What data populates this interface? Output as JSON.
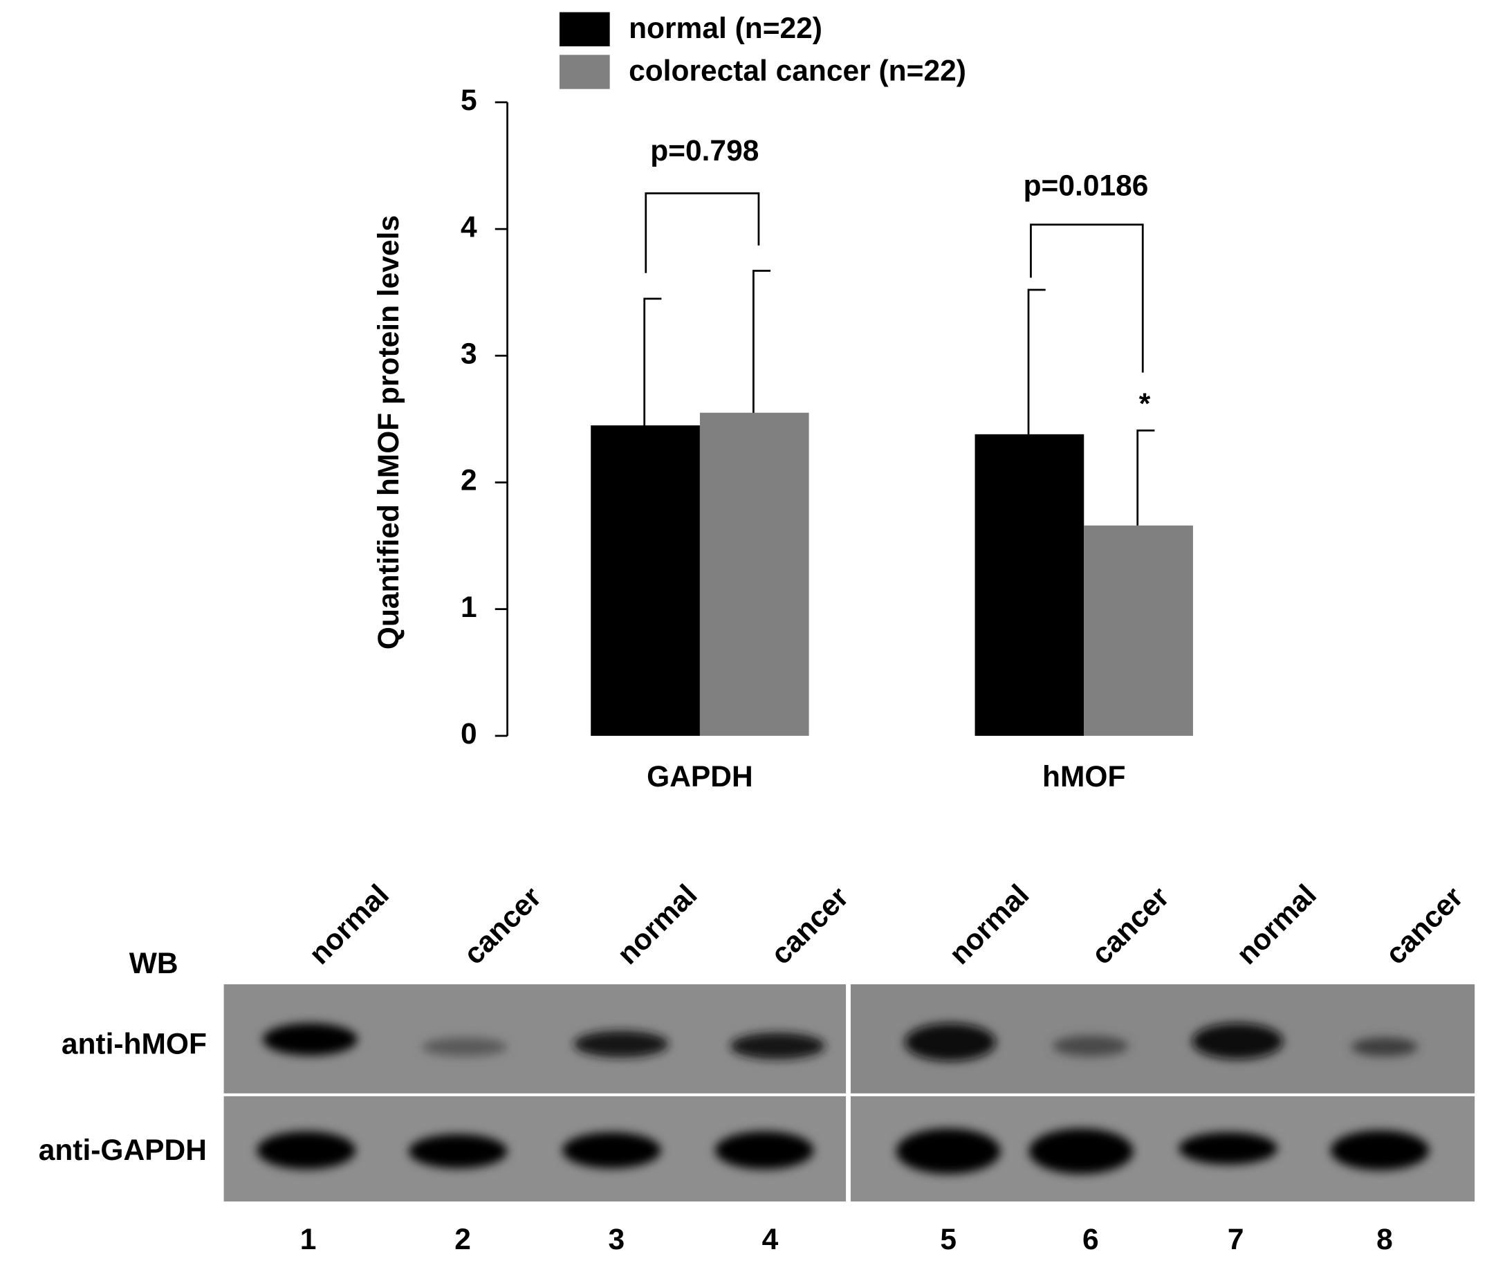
{
  "chart_data": {
    "type": "bar",
    "ylabel": "Quantified hMOF protein levels",
    "categories": [
      "GAPDH",
      "hMOF"
    ],
    "series": [
      {
        "name": "normal (n=22)",
        "color": "#000000",
        "values": [
          2.45,
          2.38
        ],
        "errors": [
          1.0,
          1.14
        ]
      },
      {
        "name": "colorectal cancer (n=22)",
        "color": "#808080",
        "values": [
          2.55,
          1.66
        ],
        "errors": [
          1.12,
          0.75
        ]
      }
    ],
    "ylim": [
      0,
      5
    ],
    "yticks": [
      0,
      1,
      2,
      3,
      4,
      5
    ],
    "annotations": [
      "p=0.798",
      "p=0.0186",
      "*"
    ]
  },
  "western_blot": {
    "label": "WB",
    "rows": [
      "anti-hMOF",
      "anti-GAPDH"
    ],
    "lane_labels": [
      "normal",
      "cancer",
      "normal",
      "cancer",
      "normal",
      "cancer",
      "normal",
      "cancer"
    ],
    "lane_numbers": [
      "1",
      "2",
      "3",
      "4",
      "5",
      "6",
      "7",
      "8"
    ]
  }
}
